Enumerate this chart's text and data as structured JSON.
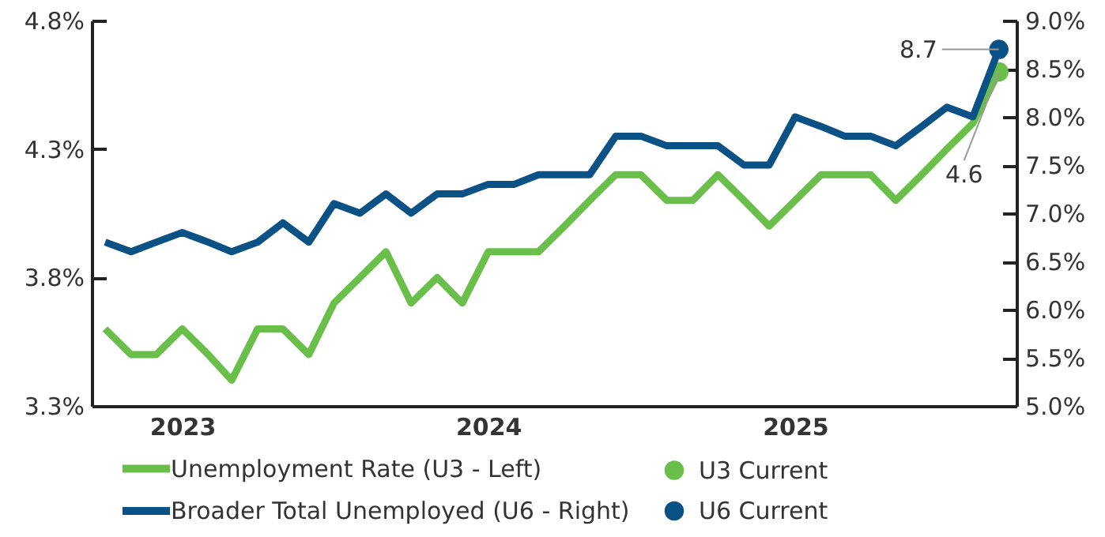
{
  "chart_data": {
    "type": "line",
    "x": [
      "2022-10",
      "2022-11",
      "2022-12",
      "2023-01",
      "2023-02",
      "2023-03",
      "2023-04",
      "2023-05",
      "2023-06",
      "2023-07",
      "2023-08",
      "2023-09",
      "2023-10",
      "2023-11",
      "2023-12",
      "2024-01",
      "2024-02",
      "2024-03",
      "2024-04",
      "2024-05",
      "2024-06",
      "2024-07",
      "2024-08",
      "2024-09",
      "2024-10",
      "2024-11",
      "2024-12",
      "2025-01",
      "2025-02",
      "2025-03",
      "2025-04",
      "2025-05",
      "2025-06",
      "2025-07",
      "2025-08",
      "2025-09"
    ],
    "series": [
      {
        "name": "Unemployment Rate (U3 - Left)",
        "color": "#6abf4b",
        "axis": "y",
        "values": [
          3.6,
          3.5,
          3.5,
          3.6,
          3.5,
          3.4,
          3.6,
          3.6,
          3.5,
          3.7,
          3.8,
          3.9,
          3.7,
          3.8,
          3.7,
          3.9,
          3.9,
          3.9,
          4.0,
          4.1,
          4.2,
          4.2,
          4.1,
          4.1,
          4.2,
          4.1,
          4.0,
          4.1,
          4.2,
          4.2,
          4.2,
          4.1,
          4.2,
          4.3,
          4.4,
          4.6
        ]
      },
      {
        "name": "Broader Total Unemployed (U6 - Right)",
        "color": "#0a5185",
        "axis": "y2",
        "values": [
          6.7,
          6.6,
          6.7,
          6.8,
          6.7,
          6.6,
          6.7,
          6.9,
          6.7,
          7.1,
          7.0,
          7.2,
          7.0,
          7.2,
          7.2,
          7.3,
          7.3,
          7.4,
          7.4,
          7.4,
          7.8,
          7.8,
          7.7,
          7.7,
          7.7,
          7.5,
          7.5,
          8.0,
          7.9,
          7.8,
          7.8,
          7.7,
          7.9,
          8.1,
          8.0,
          8.7
        ]
      },
      {
        "name": "U3 Current",
        "type": "scatter",
        "color": "#6abf4b",
        "axis": "y",
        "x": [
          "2025-09"
        ],
        "values": [
          4.6
        ],
        "value_labels": [
          "4.6"
        ]
      },
      {
        "name": "U6 Current",
        "type": "scatter",
        "color": "#0a5185",
        "axis": "y2",
        "x": [
          "2025-09"
        ],
        "values": [
          8.7
        ],
        "value_labels": [
          "8.7"
        ]
      }
    ],
    "xlim": [
      "2022-09-15",
      "2025-09-22"
    ],
    "xticks": [
      {
        "value": "2023-01",
        "label": "2023"
      },
      {
        "value": "2024-01",
        "label": "2024"
      },
      {
        "value": "2025-01",
        "label": "2025"
      }
    ],
    "ylim": [
      3.3,
      4.8
    ],
    "yticks": [
      {
        "value": 3.3,
        "label": "3.3%"
      },
      {
        "value": 3.8,
        "label": "3.8%"
      },
      {
        "value": 4.3,
        "label": "4.3%"
      },
      {
        "value": 4.8,
        "label": "4.8%"
      }
    ],
    "y2lim": [
      5.0,
      9.0
    ],
    "y2ticks": [
      {
        "value": 5.0,
        "label": "5.0%"
      },
      {
        "value": 5.5,
        "label": "5.5%"
      },
      {
        "value": 6.0,
        "label": "6.0%"
      },
      {
        "value": 6.5,
        "label": "6.5%"
      },
      {
        "value": 7.0,
        "label": "7.0%"
      },
      {
        "value": 7.5,
        "label": "7.5%"
      },
      {
        "value": 8.0,
        "label": "8.0%"
      },
      {
        "value": 8.5,
        "label": "8.5%"
      },
      {
        "value": 9.0,
        "label": "9.0%"
      }
    ],
    "grid": false,
    "legend": "bottom",
    "line_style": "solid"
  }
}
